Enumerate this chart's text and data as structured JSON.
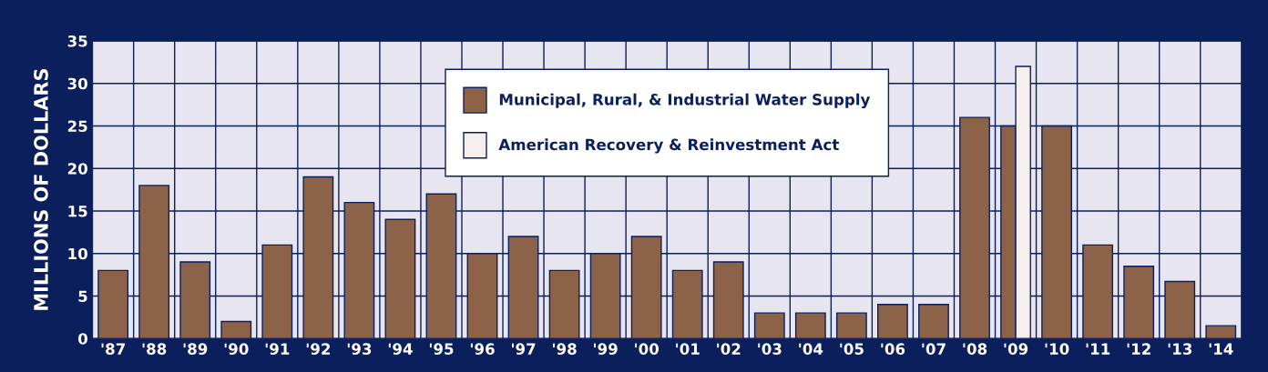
{
  "chart_data": {
    "type": "bar",
    "ylabel": "MILLIONS OF DOLLARS",
    "categories": [
      "'87",
      "'88",
      "'89",
      "'90",
      "'91",
      "'92",
      "'93",
      "'94",
      "'95",
      "'96",
      "'97",
      "'98",
      "'99",
      "'00",
      "'01",
      "'02",
      "'03",
      "'04",
      "'05",
      "'06",
      "'07",
      "'08",
      "'09",
      "'10",
      "'11",
      "'12",
      "'13",
      "'14"
    ],
    "series": [
      {
        "name": "Municipal, Rural, & Industrial Water Supply",
        "color": "#8c6249",
        "values": [
          8,
          18,
          9,
          2,
          11,
          19,
          16,
          14,
          17,
          10,
          12,
          8,
          10,
          12,
          8,
          9,
          3,
          3,
          3,
          4,
          4,
          26,
          25,
          25,
          11,
          8.5,
          6.7,
          1.5
        ]
      },
      {
        "name": "American Recovery & Reinvestment Act",
        "color": "#f6eded",
        "values": [
          null,
          null,
          null,
          null,
          null,
          null,
          null,
          null,
          null,
          null,
          null,
          null,
          null,
          null,
          null,
          null,
          null,
          null,
          null,
          null,
          null,
          null,
          32,
          null,
          null,
          null,
          null,
          null
        ]
      }
    ],
    "ylim": [
      0,
      35
    ],
    "yticks": [
      0,
      5,
      10,
      15,
      20,
      25,
      30,
      35
    ],
    "grid": true,
    "legend": "top"
  }
}
